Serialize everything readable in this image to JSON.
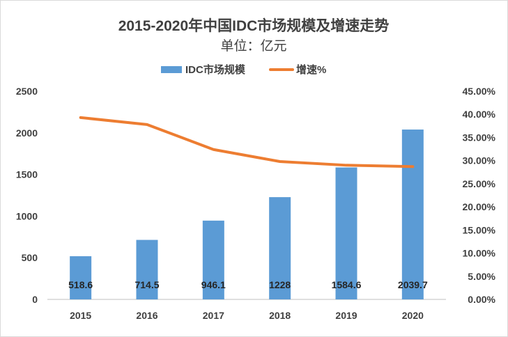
{
  "chart_data": {
    "type": "bar",
    "title": "2015-2020年中国IDC市场规模及增速走势",
    "subtitle": "单位：亿元",
    "categories": [
      "2015",
      "2016",
      "2017",
      "2018",
      "2019",
      "2020"
    ],
    "series": [
      {
        "name": "IDC市场规模",
        "type": "bar",
        "axis": "left",
        "color": "#5b9bd5",
        "values": [
          518.6,
          714.5,
          946.1,
          1228,
          1584.6,
          2039.7
        ],
        "labels": [
          "518.6",
          "714.5",
          "946.1",
          "1228",
          "1584.6",
          "2039.7"
        ]
      },
      {
        "name": "增速%",
        "type": "line",
        "axis": "right",
        "color": "#ed7d31",
        "values": [
          39.3,
          37.8,
          32.4,
          29.8,
          29.0,
          28.7
        ]
      }
    ],
    "y_left": {
      "min": 0,
      "max": 2500,
      "ticks": [
        "0",
        "500",
        "1000",
        "1500",
        "2000",
        "2500"
      ]
    },
    "y_right": {
      "min": 0,
      "max": 45,
      "ticks": [
        "0.00%",
        "5.00%",
        "10.00%",
        "15.00%",
        "20.00%",
        "25.00%",
        "30.00%",
        "35.00%",
        "40.00%",
        "45.00%"
      ]
    },
    "legend_position": "top",
    "grid": false
  }
}
